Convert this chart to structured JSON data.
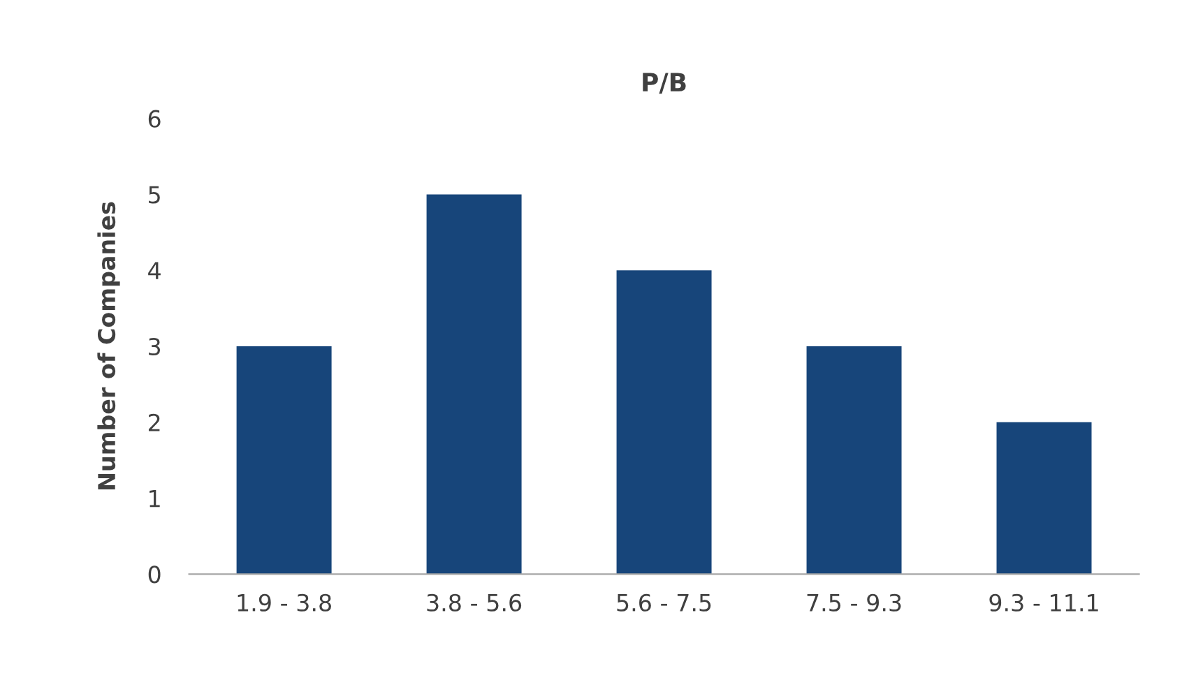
{
  "chart_data": {
    "type": "bar",
    "title": "P/B",
    "ylabel": "Number of Companies",
    "categories": [
      "1.9 - 3.8",
      "3.8 - 5.6",
      "5.6 - 7.5",
      "7.5 - 9.3",
      "9.3 - 11.1"
    ],
    "values": [
      3,
      5,
      4,
      3,
      2
    ],
    "color": "#17457a",
    "ylim": [
      0,
      6
    ],
    "yticks": [
      0,
      1,
      2,
      3,
      4,
      5,
      6
    ],
    "grid": false,
    "legend": false
  }
}
